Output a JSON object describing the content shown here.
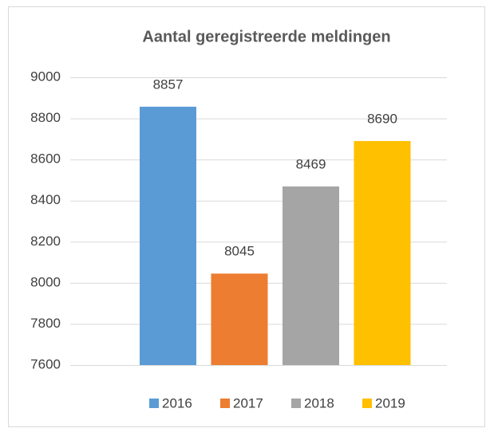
{
  "chart_data": {
    "type": "bar",
    "title": "Aantal geregistreerde meldingen",
    "series": [
      {
        "name": "2016",
        "color": "#5b9bd5",
        "values": [
          8857
        ]
      },
      {
        "name": "2017",
        "color": "#ed7d31",
        "values": [
          8045
        ]
      },
      {
        "name": "2018",
        "color": "#a5a5a5",
        "values": [
          8469
        ]
      },
      {
        "name": "2019",
        "color": "#ffc000",
        "values": [
          8690
        ]
      }
    ],
    "ylim": [
      7600,
      9000
    ],
    "yticks": [
      7600,
      7800,
      8000,
      8200,
      8400,
      8600,
      8800,
      9000
    ],
    "grid": true,
    "legend": "bottom"
  }
}
